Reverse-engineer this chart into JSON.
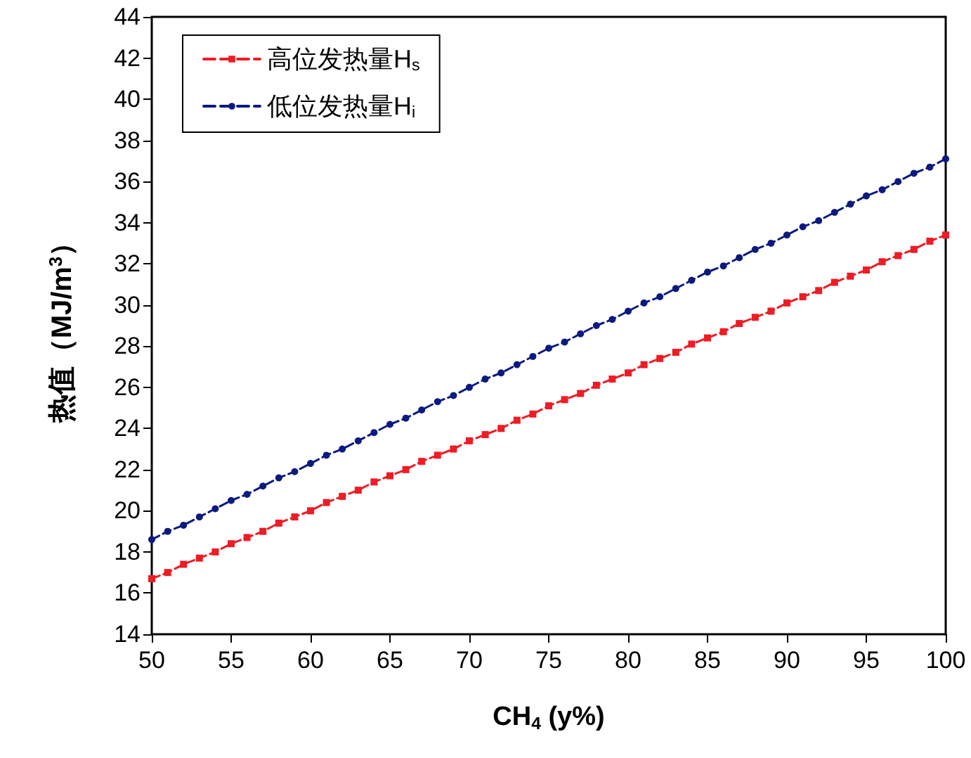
{
  "chart_data": {
    "type": "line",
    "xlabel": "CH$_{4}$ (y%)",
    "ylabel": "热值（MJ/m$^{3}$）",
    "x": [
      50,
      51,
      52,
      53,
      54,
      55,
      56,
      57,
      58,
      59,
      60,
      61,
      62,
      63,
      64,
      65,
      66,
      67,
      68,
      69,
      70,
      71,
      72,
      73,
      74,
      75,
      76,
      77,
      78,
      79,
      80,
      81,
      82,
      83,
      84,
      85,
      86,
      87,
      88,
      89,
      90,
      91,
      92,
      93,
      94,
      95,
      96,
      97,
      98,
      99,
      100
    ],
    "series": [
      {
        "name": "高位发热量H$_{s}$",
        "color": "#ee1c25",
        "marker": "square",
        "values": [
          16.7,
          17.0,
          17.4,
          17.7,
          18.0,
          18.4,
          18.7,
          19.0,
          19.4,
          19.7,
          20.0,
          20.4,
          20.7,
          21.0,
          21.4,
          21.7,
          22.0,
          22.4,
          22.7,
          23.0,
          23.4,
          23.7,
          24.0,
          24.4,
          24.7,
          25.1,
          25.4,
          25.7,
          26.1,
          26.4,
          26.7,
          27.1,
          27.4,
          27.7,
          28.1,
          28.4,
          28.7,
          29.1,
          29.4,
          29.7,
          30.1,
          30.4,
          30.7,
          31.1,
          31.4,
          31.7,
          32.1,
          32.4,
          32.7,
          33.1,
          33.4
        ]
      },
      {
        "name": "低位发热量H$_{i}$",
        "color": "#0c1a80",
        "marker": "circle",
        "values": [
          18.6,
          19.0,
          19.3,
          19.7,
          20.1,
          20.5,
          20.8,
          21.2,
          21.6,
          21.9,
          22.3,
          22.7,
          23.0,
          23.4,
          23.8,
          24.2,
          24.5,
          24.9,
          25.3,
          25.6,
          26.0,
          26.4,
          26.7,
          27.1,
          27.5,
          27.9,
          28.2,
          28.6,
          29.0,
          29.3,
          29.7,
          30.1,
          30.4,
          30.8,
          31.2,
          31.6,
          31.9,
          32.3,
          32.7,
          33.0,
          33.4,
          33.8,
          34.1,
          34.5,
          34.9,
          35.3,
          35.6,
          36.0,
          36.4,
          36.7,
          37.1
        ]
      }
    ],
    "xlim": [
      50,
      100
    ],
    "xticks": [
      50,
      55,
      60,
      65,
      70,
      75,
      80,
      85,
      90,
      95,
      100
    ],
    "ylim": [
      14,
      44
    ],
    "yticks": [
      14,
      16,
      18,
      20,
      22,
      24,
      26,
      28,
      30,
      32,
      34,
      36,
      38,
      40,
      42,
      44
    ],
    "grid": false,
    "legend": "top left",
    "line_style": "dashed"
  }
}
